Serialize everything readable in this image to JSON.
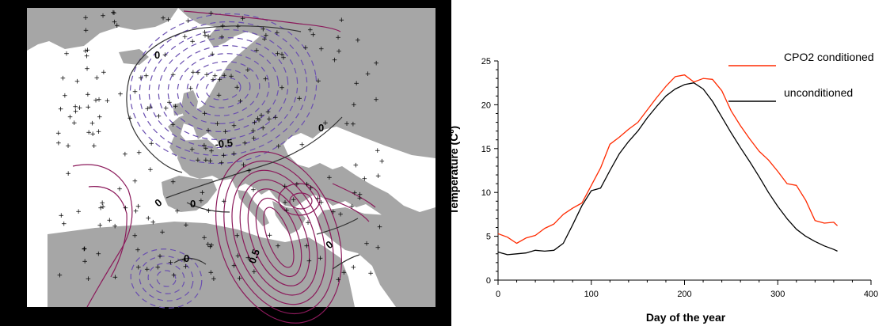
{
  "map": {
    "contour_labels": [
      "0",
      "-0.5",
      "0",
      "0",
      "0",
      "0.5",
      "0",
      "0"
    ],
    "colors": {
      "background": "#000000",
      "sea": "#ffffff",
      "land": "#a6a6a6",
      "negative_contour": "#6a4fb0",
      "positive_contour": "#8b1a5b",
      "zero_contour": "#333333",
      "stations": "#000000"
    }
  },
  "chart_data": {
    "type": "line",
    "title": "",
    "xlabel": "Day of the year",
    "ylabel": "Temperature (Cº)",
    "xlim": [
      0,
      400
    ],
    "ylim": [
      0,
      25
    ],
    "xticks": [
      "0",
      "100",
      "200",
      "300",
      "400"
    ],
    "yticks": [
      "0",
      "5",
      "10",
      "15",
      "20",
      "25"
    ],
    "grid": false,
    "legend_position": "top-right",
    "series": [
      {
        "name": "CPO2 conditioned",
        "color": "#ff2a00",
        "x": [
          0,
          10,
          20,
          30,
          40,
          50,
          60,
          70,
          80,
          90,
          100,
          110,
          120,
          130,
          140,
          150,
          160,
          170,
          180,
          190,
          200,
          210,
          220,
          230,
          240,
          250,
          260,
          270,
          280,
          290,
          300,
          310,
          320,
          330,
          340,
          350,
          360,
          364
        ],
        "y": [
          5.3,
          4.9,
          4.2,
          4.8,
          5.1,
          5.9,
          6.4,
          7.5,
          8.2,
          8.8,
          10.8,
          12.8,
          15.5,
          16.3,
          17.2,
          18.0,
          19.4,
          20.8,
          22.1,
          23.2,
          23.4,
          22.6,
          23.0,
          22.9,
          21.6,
          19.3,
          17.6,
          16.1,
          14.7,
          13.7,
          12.4,
          11.0,
          10.8,
          9.1,
          6.8,
          6.5,
          6.6,
          6.2
        ]
      },
      {
        "name": "unconditioned",
        "color": "#000000",
        "x": [
          0,
          10,
          20,
          30,
          40,
          50,
          60,
          70,
          80,
          90,
          100,
          110,
          120,
          130,
          140,
          150,
          160,
          170,
          180,
          190,
          200,
          210,
          220,
          230,
          240,
          250,
          260,
          270,
          280,
          290,
          300,
          310,
          320,
          330,
          340,
          350,
          360,
          364
        ],
        "y": [
          3.2,
          2.9,
          3.0,
          3.1,
          3.4,
          3.3,
          3.4,
          4.2,
          6.3,
          8.5,
          10.2,
          10.5,
          12.5,
          14.4,
          15.8,
          17.0,
          18.5,
          19.8,
          21.0,
          21.8,
          22.3,
          22.5,
          21.8,
          20.4,
          18.6,
          16.8,
          15.1,
          13.5,
          11.8,
          10.0,
          8.4,
          7.0,
          5.8,
          5.0,
          4.4,
          3.9,
          3.5,
          3.3
        ]
      }
    ]
  }
}
